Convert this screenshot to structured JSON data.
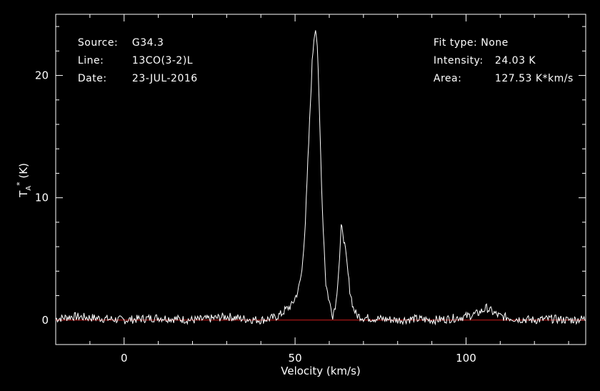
{
  "header": {
    "source_label": "Source:",
    "source_value": "G34.3",
    "line_label": "Line:",
    "line_value": "13CO(3-2)L",
    "date_label": "Date:",
    "date_value": "23-JUL-2016",
    "fit_label": "Fit type:",
    "fit_value": "None",
    "intensity_label": "Intensity:",
    "intensity_value": "24.03 K",
    "area_label": "Area:",
    "area_value": "127.53 K*km/s"
  },
  "chart_data": {
    "type": "line",
    "title": "",
    "xlabel": "Velocity (km/s)",
    "ylabel": "T_A^* (K)",
    "xlim": [
      -20,
      135
    ],
    "ylim": [
      -2,
      25
    ],
    "x_ticks": [
      0,
      50,
      100
    ],
    "y_ticks": [
      0,
      10,
      20
    ],
    "colors": {
      "background": "#000000",
      "axes": "#ffffff",
      "spectrum": "#ffffff",
      "baseline": "#cc1a1a"
    },
    "baseline": 0,
    "series": [
      {
        "x": [
          -20,
          -15,
          -10,
          -5,
          0,
          5,
          10,
          15,
          20,
          25,
          30,
          35,
          40,
          42,
          44,
          46,
          47,
          48,
          49,
          50,
          51,
          52,
          53,
          54,
          55,
          55.5,
          56,
          56.5,
          57,
          58,
          59,
          60,
          61,
          62,
          63,
          63.5,
          64,
          65,
          66,
          67,
          68,
          70,
          75,
          80,
          85,
          90,
          95,
          100,
          103,
          105,
          106,
          107,
          108,
          110,
          115,
          120,
          125,
          130,
          135
        ],
        "y": [
          0.1,
          0.3,
          0.2,
          0.1,
          0.0,
          0.1,
          0.2,
          0.1,
          0.0,
          0.1,
          0.3,
          0.1,
          0.0,
          0.1,
          0.2,
          0.5,
          0.8,
          1.0,
          1.2,
          1.8,
          2.5,
          4.0,
          8.0,
          14.5,
          21.0,
          23.0,
          24.0,
          22.5,
          18.0,
          9.0,
          3.0,
          1.5,
          0.4,
          1.5,
          5.0,
          7.5,
          7.2,
          5.0,
          2.5,
          1.0,
          0.4,
          0.2,
          0.1,
          0.0,
          0.1,
          0.0,
          0.1,
          0.3,
          0.5,
          0.8,
          1.0,
          0.8,
          0.6,
          0.3,
          0.1,
          0.0,
          0.1,
          0.0,
          0.1
        ]
      }
    ]
  }
}
